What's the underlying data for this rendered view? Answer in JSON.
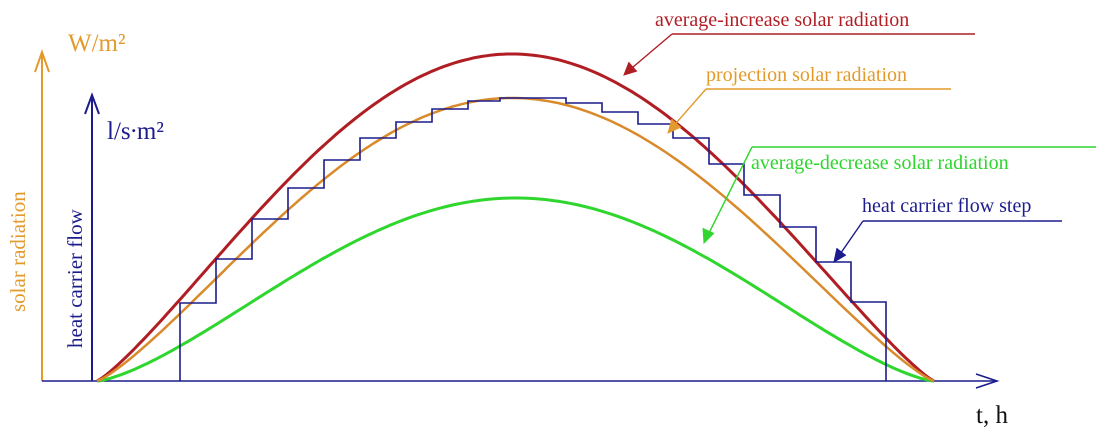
{
  "colors": {
    "orange_axis": "#e39a2c",
    "blue_axis": "#1c1c8c",
    "red_curve": "#b01e24",
    "orange_curve": "#d98a2a",
    "green_curve": "#2ed62e",
    "blue_step": "#1c1c8c",
    "baseline": "#1c1c8c"
  },
  "axes": {
    "solar_unit": "W/m²",
    "flow_unit": "l/s∙m²",
    "solar_title": "solar radiation",
    "flow_title": "heat carrier flow",
    "time_label": "t, h"
  },
  "curves": {
    "red_label": "average-increase solar radiation",
    "orange_label": "projection solar radiation",
    "green_label": "average-decrease solar radiation",
    "blue_label": "heat carrier flow step"
  }
}
